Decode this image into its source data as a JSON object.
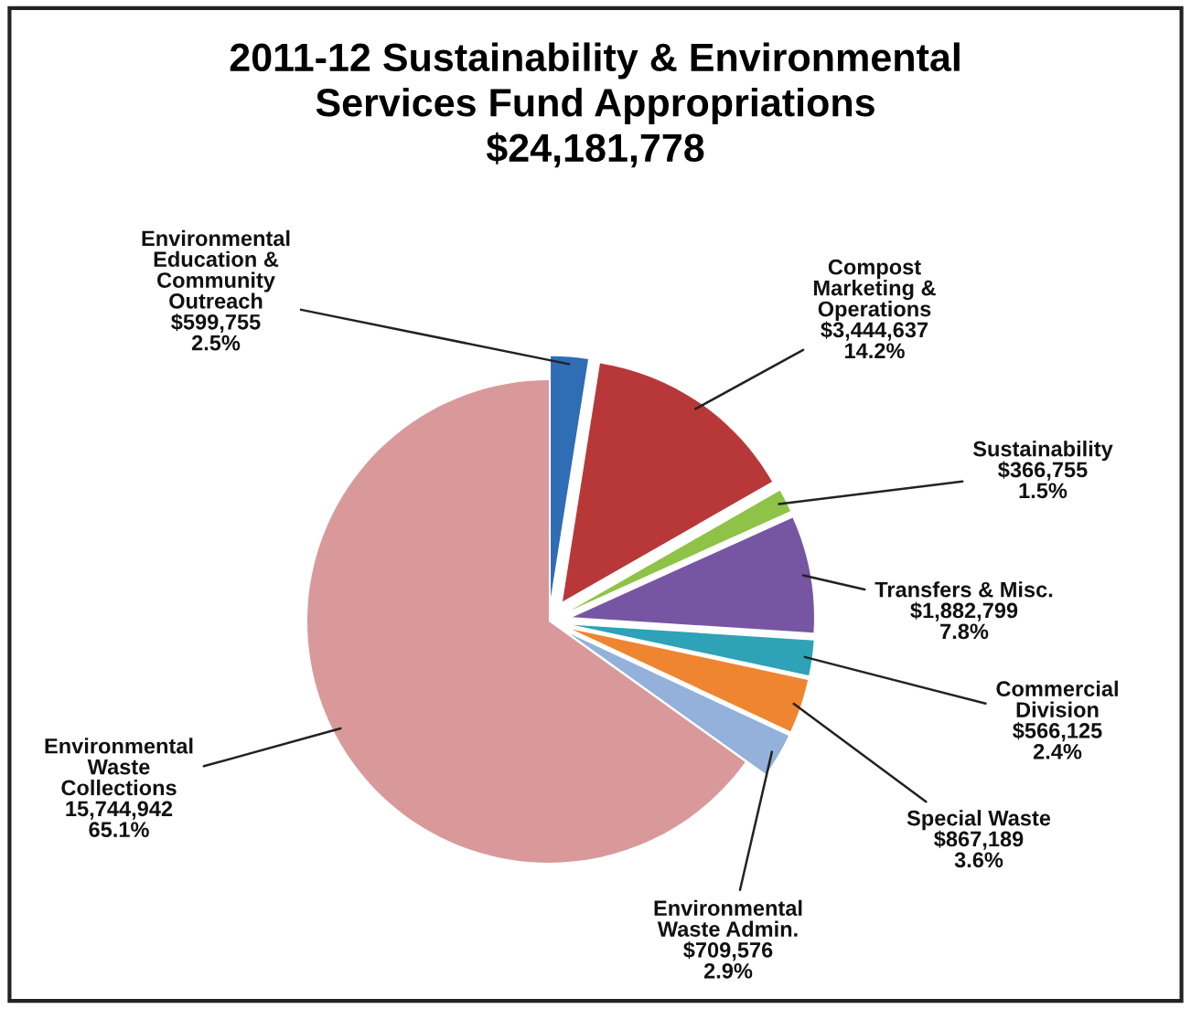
{
  "chart_data": {
    "type": "pie",
    "title": "2011-12 Sustainability & Environmental\nServices Fund Appropriations\n$24,181,778",
    "categories": [
      "Environmental\nEducation &\nCommunity\nOutreach",
      "Compost\nMarketing &\nOperations",
      "Sustainability",
      "Transfers & Misc.",
      "Commercial\nDivision",
      "Special Waste",
      "Environmental\nWaste Admin.",
      "Environmental\nWaste\nCollections"
    ],
    "values": [
      599755,
      3444637,
      366755,
      1882799,
      566125,
      867189,
      709576,
      15744942
    ],
    "value_labels": [
      "$599,755\n2.5%",
      "$3,444,637\n14.2%",
      "$366,755\n1.5%",
      "$1,882,799\n7.8%",
      "$566,125\n2.4%",
      "$867,189\n3.6%",
      "$709,576\n2.9%",
      "15,744,942\n65.1%"
    ],
    "colors": [
      "#2f6db5",
      "#b8383a",
      "#8fc347",
      "#7656a3",
      "#2ea2b6",
      "#ef8530",
      "#93b1da",
      "#d9999b"
    ],
    "legend": false
  }
}
